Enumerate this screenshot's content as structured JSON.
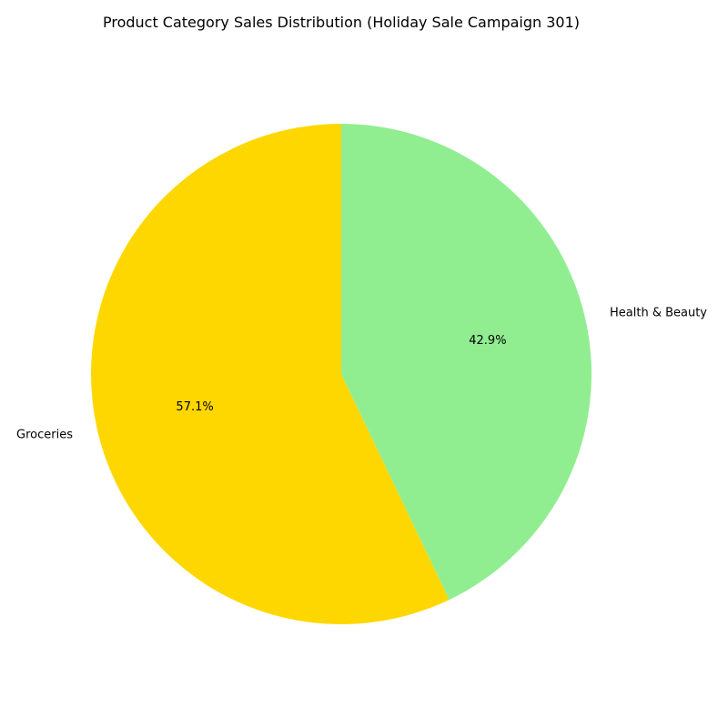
{
  "chart_data": {
    "type": "pie",
    "title": "Product Category Sales Distribution (Holiday Sale Campaign 301)",
    "start_angle_deg": 90,
    "direction": "counterclockwise",
    "slices": [
      {
        "label": "Groceries",
        "percent": 57.1,
        "percent_label": "57.1%",
        "color": "#FFD700"
      },
      {
        "label": "Health & Beauty",
        "percent": 42.9,
        "percent_label": "42.9%",
        "color": "#90EE90"
      }
    ]
  }
}
